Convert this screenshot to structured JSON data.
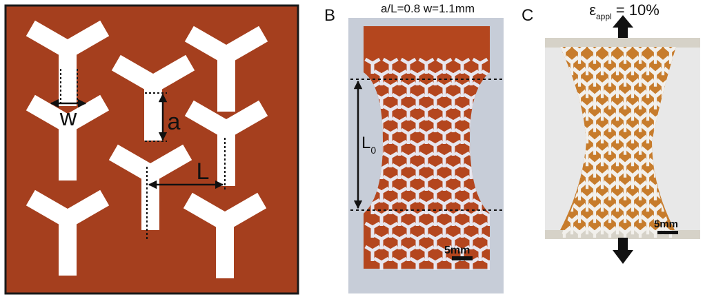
{
  "panel_a": {
    "labels": {
      "w": "w",
      "a": "a",
      "L": "L"
    },
    "colors": {
      "background": "#A53F1E",
      "cut": "#FFFFFF",
      "frame": "#1A1A1A"
    }
  },
  "panel_b": {
    "panel_label": "B",
    "title": "a/L=0.8 w=1.1mm",
    "gauge_length_label": "L",
    "gauge_length_subscript": "0",
    "scale_bar_label": "5mm",
    "colors": {
      "specimen": "#B4461E",
      "backdrop": "#C7CDD8"
    }
  },
  "panel_c": {
    "panel_label": "C",
    "strain_symbol": "ε",
    "strain_subscript": "appl",
    "strain_value": " = 10%",
    "scale_bar_label": "5mm",
    "colors": {
      "specimen": "#C77C2C",
      "backdrop": "#E8E8E8"
    }
  }
}
